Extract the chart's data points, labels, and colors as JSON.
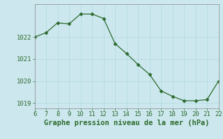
{
  "x": [
    6,
    7,
    8,
    9,
    10,
    11,
    12,
    13,
    14,
    15,
    16,
    17,
    18,
    19,
    20,
    21,
    22
  ],
  "y": [
    1022.0,
    1022.2,
    1022.65,
    1022.6,
    1023.05,
    1023.05,
    1022.85,
    1021.7,
    1021.25,
    1020.75,
    1020.3,
    1019.55,
    1019.3,
    1019.1,
    1019.1,
    1019.15,
    1020.0
  ],
  "xlim": [
    6,
    22
  ],
  "ylim": [
    1018.75,
    1023.5
  ],
  "xticks": [
    6,
    7,
    8,
    9,
    10,
    11,
    12,
    13,
    14,
    15,
    16,
    17,
    18,
    19,
    20,
    21,
    22
  ],
  "yticks": [
    1019,
    1020,
    1021,
    1022
  ],
  "xlabel": "Graphe pression niveau de la mer (hPa)",
  "line_color": "#2d6a2d",
  "marker_color": "#2d6a2d",
  "bg_color": "#cce8ee",
  "grid_color": "#b0d8e0",
  "tick_fontsize": 6.5,
  "xlabel_fontsize": 7.5,
  "marker": "D",
  "marker_size": 2.5,
  "linewidth": 0.9
}
